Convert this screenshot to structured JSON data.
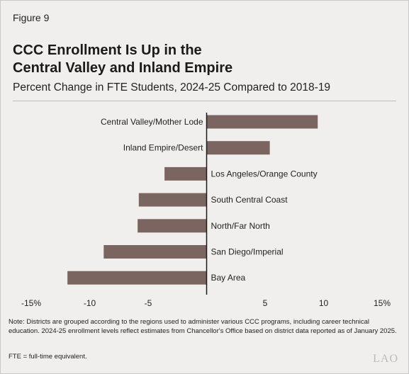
{
  "figure_label": "Figure 9",
  "title_lines": [
    "CCC Enrollment Is Up in the",
    "Central Valley and Inland Empire"
  ],
  "subtitle": "Percent Change in FTE Students, 2024-25 Compared to 2018-19",
  "chart_data": {
    "type": "bar",
    "orientation": "horizontal",
    "categories": [
      "Central Valley/Mother Lode",
      "Inland Empire/Desert",
      "Los Angeles/Orange County",
      "South Central Coast",
      "North/Far North",
      "San Diego/Imperial",
      "Bay Area"
    ],
    "values": [
      9.5,
      5.4,
      -3.6,
      -5.8,
      -5.9,
      -8.8,
      -11.9
    ],
    "xlim": [
      -15,
      15
    ],
    "xticks": [
      -15,
      -10,
      -5,
      5,
      10,
      15
    ],
    "xtick_labels": [
      "-15%",
      "-10",
      "-5",
      "5",
      "10",
      "15%"
    ],
    "bar_color": "#7a6561",
    "grid": false
  },
  "note": "Note: Districts are grouped according to the regions used to administer various CCC programs, including career technical education. 2024-25 enrollment levels reflect estimates from Chancellor's Office based on district data reported as of January 2025.",
  "fte_note": "FTE = full-time equivalent.",
  "logo": "LAO"
}
